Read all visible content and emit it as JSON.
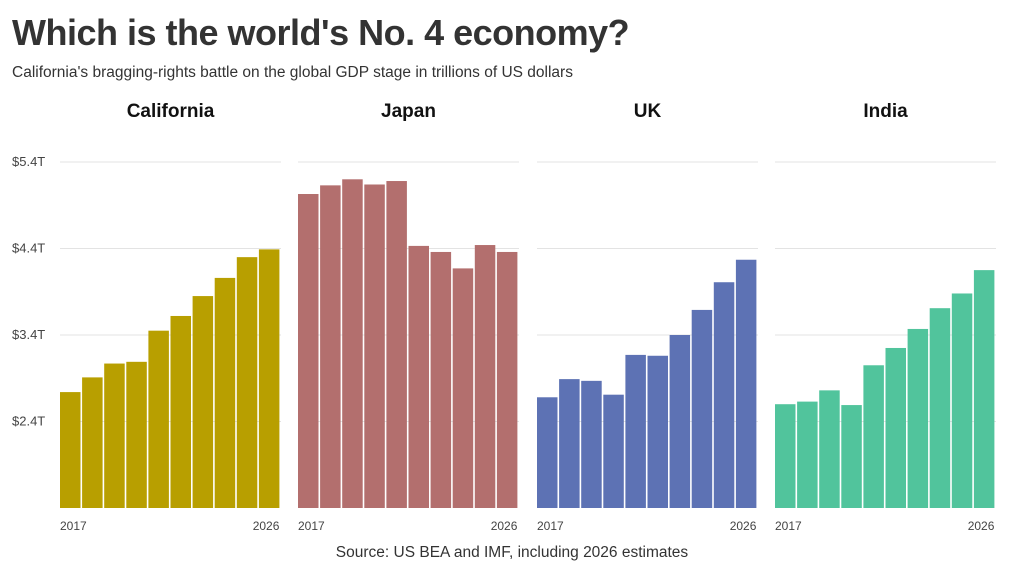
{
  "title": "Which is the world's No. 4 economy?",
  "subtitle": "California's bragging-rights battle on the global GDP stage in trillions of US dollars",
  "source": "Source: US BEA and IMF, including 2026 estimates",
  "chart_data": {
    "type": "bar",
    "ylim": [
      1.4,
      5.4
    ],
    "yticks": [
      {
        "value": 2.4,
        "label": "$2.4T"
      },
      {
        "value": 3.4,
        "label": "$3.4T"
      },
      {
        "value": 4.4,
        "label": "$4.4T"
      },
      {
        "value": 5.4,
        "label": "$5.4T"
      }
    ],
    "grid": true,
    "x": [
      2017,
      2018,
      2019,
      2020,
      2021,
      2022,
      2023,
      2024,
      2025,
      2026
    ],
    "xtick_labels": [
      "2017",
      "2026"
    ],
    "panels": [
      {
        "name": "California",
        "color": "#b89f00",
        "values": [
          2.74,
          2.91,
          3.07,
          3.09,
          3.45,
          3.62,
          3.85,
          4.06,
          4.3,
          4.39
        ]
      },
      {
        "name": "Japan",
        "color": "#b36f6e",
        "values": [
          5.03,
          5.13,
          5.2,
          5.14,
          5.18,
          4.43,
          4.36,
          4.17,
          4.44,
          4.36
        ]
      },
      {
        "name": "UK",
        "color": "#5d72b4",
        "values": [
          2.68,
          2.89,
          2.87,
          2.71,
          3.17,
          3.16,
          3.4,
          3.69,
          4.01,
          4.27
        ]
      },
      {
        "name": "India",
        "color": "#51c49c",
        "values": [
          2.6,
          2.63,
          2.76,
          2.59,
          3.05,
          3.25,
          3.47,
          3.71,
          3.88,
          4.15
        ]
      }
    ]
  }
}
